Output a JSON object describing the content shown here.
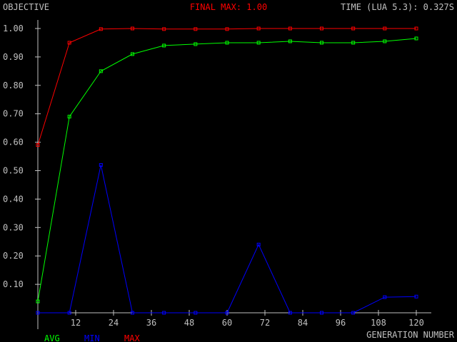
{
  "header": {
    "ylabel": "OBJECTIVE",
    "final_max": "FINAL MAX: 1.00",
    "time": "TIME (LUA 5.3): 0.327S"
  },
  "colors": {
    "background": "#000000",
    "axis": "#c0c0c0",
    "text": "#c0c0c0",
    "avg": "#00ff00",
    "min": "#0000ff",
    "max": "#ff0000",
    "final_max": "#ff0000"
  },
  "chart_data": {
    "type": "line",
    "xlabel": "GENERATION NUMBER",
    "ylabel": "OBJECTIVE",
    "xlim": [
      0,
      120
    ],
    "ylim": [
      0,
      1.0
    ],
    "x_ticks": [
      12,
      24,
      36,
      48,
      60,
      72,
      84,
      96,
      108,
      120
    ],
    "x_tick_labels": [
      "12",
      "24",
      "36",
      "48",
      "60",
      "72",
      "84",
      "96",
      "108",
      "120"
    ],
    "y_ticks": [
      0.1,
      0.2,
      0.3,
      0.4,
      0.5,
      0.6,
      0.7,
      0.8,
      0.9,
      1.0
    ],
    "y_tick_labels": [
      "0.10",
      "0.20",
      "0.30",
      "0.40",
      "0.50",
      "0.60",
      "0.70",
      "0.80",
      "0.90",
      "1.00"
    ],
    "grid": false,
    "legend_position": "bottom-left",
    "x": [
      0,
      10,
      20,
      30,
      40,
      50,
      60,
      70,
      80,
      90,
      100,
      110,
      120
    ],
    "series": [
      {
        "name": "AVG",
        "color": "#00ff00",
        "values": [
          0.04,
          0.69,
          0.85,
          0.91,
          0.94,
          0.945,
          0.95,
          0.95,
          0.955,
          0.95,
          0.95,
          0.955,
          0.965
        ]
      },
      {
        "name": "MIN",
        "color": "#0000ff",
        "values": [
          0.0,
          0.0,
          0.52,
          0.0,
          0.0,
          0.0,
          0.0,
          0.24,
          0.0,
          0.0,
          0.0,
          0.055,
          0.057
        ]
      },
      {
        "name": "MAX",
        "color": "#ff0000",
        "values": [
          0.59,
          0.95,
          0.998,
          1.0,
          0.998,
          0.998,
          0.998,
          1.0,
          1.0,
          1.0,
          1.0,
          1.0,
          1.0
        ]
      }
    ]
  }
}
